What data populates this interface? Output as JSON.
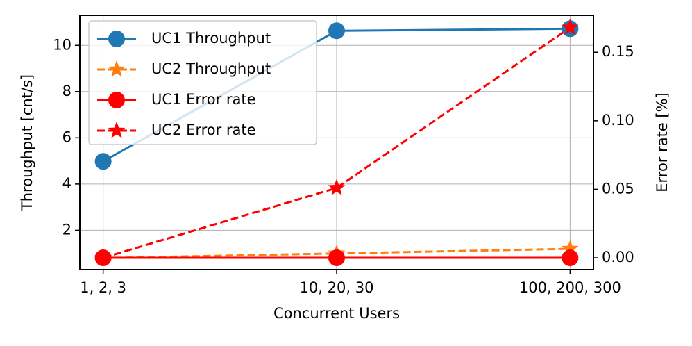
{
  "chart_data": {
    "type": "line",
    "categories": [
      "1, 2, 3",
      "10, 20, 30",
      "100, 200, 300"
    ],
    "xlabel": "Concurrent Users",
    "ylabel": "Throughput [cnt/s]",
    "y2label": "Error rate [%]",
    "ylim": [
      0.3,
      11.3
    ],
    "yticks": [
      2,
      4,
      6,
      8,
      10
    ],
    "y2lim": [
      -0.0086,
      0.177
    ],
    "y2ticks": [
      {
        "value": 0,
        "label": "0.00"
      },
      0.05,
      {
        "value": 0.1,
        "label": "0.10"
      },
      0.15
    ],
    "grid": true,
    "legend": "upper left",
    "series": [
      {
        "name": "UC1 Throughput",
        "color": "#1f77b4",
        "linestyle": "solid",
        "marker": "circle",
        "axis": "y",
        "values": [
          4.98,
          10.63,
          10.72
        ]
      },
      {
        "name": "UC2 Throughput",
        "color": "#ff7f0e",
        "linestyle": "dashed",
        "marker": "star",
        "axis": "y",
        "values": [
          0.8,
          1.0,
          1.2
        ]
      },
      {
        "name": "UC1 Error rate",
        "color": "#ff0000",
        "linestyle": "solid",
        "marker": "circle",
        "axis": "y2",
        "values": [
          0,
          0,
          0
        ]
      },
      {
        "name": "UC2 Error rate",
        "color": "#ff0000",
        "linestyle": "dashed",
        "marker": "star",
        "axis": "y2",
        "values": [
          0,
          0.051,
          0.168
        ]
      }
    ]
  }
}
